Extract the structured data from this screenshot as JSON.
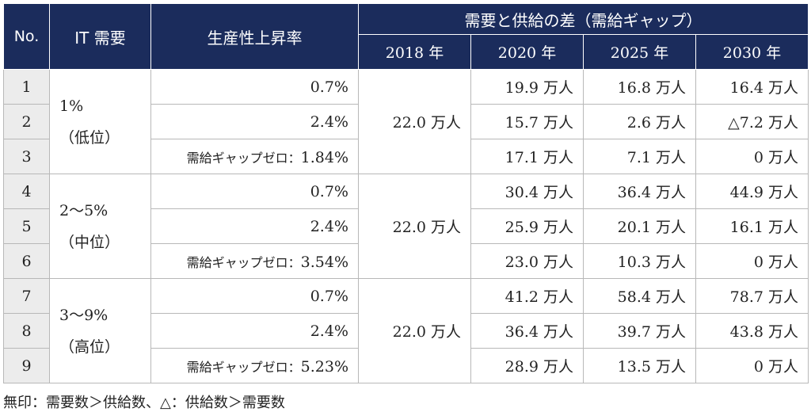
{
  "header": {
    "no": "No.",
    "it_demand": "IT 需要",
    "productivity": "生産性上昇率",
    "gap_title": "需要と供給の差（需給ギャップ）",
    "years": [
      "2018 年",
      "2020 年",
      "2025 年",
      "2030 年"
    ]
  },
  "groups": [
    {
      "demand_line1": "1%",
      "demand_line2": "（低位）",
      "y2018": "22.0 万人",
      "rows": [
        {
          "no": "1",
          "rate_label": "",
          "rate": "0.7%",
          "y2020": "19.9 万人",
          "y2025": "16.8 万人",
          "y2030": "16.4 万人"
        },
        {
          "no": "2",
          "rate_label": "",
          "rate": "2.4%",
          "y2020": "15.7 万人",
          "y2025": "2.6 万人",
          "y2030": "△7.2 万人"
        },
        {
          "no": "3",
          "rate_label": "需給ギャップゼロ：",
          "rate": "1.84%",
          "y2020": "17.1 万人",
          "y2025": "7.1 万人",
          "y2030": "0 万人"
        }
      ]
    },
    {
      "demand_line1": "2～5%",
      "demand_line2": "（中位）",
      "y2018": "22.0 万人",
      "rows": [
        {
          "no": "4",
          "rate_label": "",
          "rate": "0.7%",
          "y2020": "30.4 万人",
          "y2025": "36.4 万人",
          "y2030": "44.9 万人"
        },
        {
          "no": "5",
          "rate_label": "",
          "rate": "2.4%",
          "y2020": "25.9 万人",
          "y2025": "20.1 万人",
          "y2030": "16.1 万人"
        },
        {
          "no": "6",
          "rate_label": "需給ギャップゼロ：",
          "rate": "3.54%",
          "y2020": "23.0 万人",
          "y2025": "10.3 万人",
          "y2030": "0 万人"
        }
      ]
    },
    {
      "demand_line1": "3～9%",
      "demand_line2": "（高位）",
      "y2018": "22.0 万人",
      "rows": [
        {
          "no": "7",
          "rate_label": "",
          "rate": "0.7%",
          "y2020": "41.2 万人",
          "y2025": "58.4 万人",
          "y2030": "78.7 万人"
        },
        {
          "no": "8",
          "rate_label": "",
          "rate": "2.4%",
          "y2020": "36.4 万人",
          "y2025": "39.7 万人",
          "y2030": "43.8 万人"
        },
        {
          "no": "9",
          "rate_label": "需給ギャップゼロ：",
          "rate": "5.23%",
          "y2020": "28.9 万人",
          "y2025": "13.5 万人",
          "y2030": "0 万人"
        }
      ]
    }
  ],
  "note": "無印：需要数＞供給数、△：供給数＞需要数",
  "colors": {
    "header_bg": "#1b2c5c",
    "no_col_bg": "#ececec",
    "border": "#b8b8b8"
  }
}
